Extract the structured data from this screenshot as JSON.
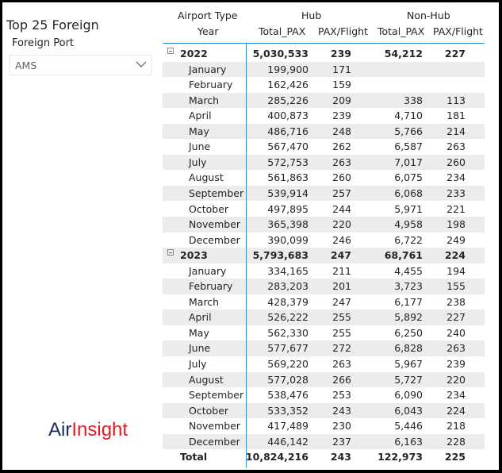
{
  "title": "Top 25 Foreign",
  "slicer": {
    "label": "Foreign Port",
    "value": "AMS"
  },
  "logo": {
    "part1": "Air",
    "part2": "Insight"
  },
  "headers": {
    "row_header": "Airport Type",
    "col_header": "Year",
    "group1": "Hub",
    "group2": "Non-Hub",
    "total_pax": "Total_PAX",
    "pax_flight": "PAX/Flight"
  },
  "rows": [
    {
      "type": "year",
      "label": "2022",
      "v": [
        "5,030,533",
        "239",
        "54,212",
        "227"
      ]
    },
    {
      "type": "month",
      "label": "January",
      "v": [
        "199,900",
        "171",
        "",
        ""
      ]
    },
    {
      "type": "month",
      "label": "February",
      "v": [
        "162,426",
        "159",
        "",
        ""
      ]
    },
    {
      "type": "month",
      "label": "March",
      "v": [
        "285,226",
        "209",
        "338",
        "113"
      ]
    },
    {
      "type": "month",
      "label": "April",
      "v": [
        "400,873",
        "239",
        "4,710",
        "181"
      ]
    },
    {
      "type": "month",
      "label": "May",
      "v": [
        "486,716",
        "248",
        "5,766",
        "214"
      ]
    },
    {
      "type": "month",
      "label": "June",
      "v": [
        "567,470",
        "262",
        "6,587",
        "263"
      ]
    },
    {
      "type": "month",
      "label": "July",
      "v": [
        "572,753",
        "263",
        "7,017",
        "260"
      ]
    },
    {
      "type": "month",
      "label": "August",
      "v": [
        "561,863",
        "260",
        "6,075",
        "234"
      ]
    },
    {
      "type": "month",
      "label": "September",
      "v": [
        "539,914",
        "257",
        "6,068",
        "233"
      ]
    },
    {
      "type": "month",
      "label": "October",
      "v": [
        "497,895",
        "244",
        "5,971",
        "221"
      ]
    },
    {
      "type": "month",
      "label": "November",
      "v": [
        "365,398",
        "220",
        "4,958",
        "198"
      ]
    },
    {
      "type": "month",
      "label": "December",
      "v": [
        "390,099",
        "246",
        "6,722",
        "249"
      ]
    },
    {
      "type": "year",
      "label": "2023",
      "v": [
        "5,793,683",
        "247",
        "68,761",
        "224"
      ]
    },
    {
      "type": "month",
      "label": "January",
      "v": [
        "334,165",
        "211",
        "4,455",
        "194"
      ]
    },
    {
      "type": "month",
      "label": "February",
      "v": [
        "283,203",
        "201",
        "3,723",
        "155"
      ]
    },
    {
      "type": "month",
      "label": "March",
      "v": [
        "428,379",
        "247",
        "6,177",
        "238"
      ]
    },
    {
      "type": "month",
      "label": "April",
      "v": [
        "526,222",
        "255",
        "5,892",
        "227"
      ]
    },
    {
      "type": "month",
      "label": "May",
      "v": [
        "562,330",
        "255",
        "6,250",
        "240"
      ]
    },
    {
      "type": "month",
      "label": "June",
      "v": [
        "577,677",
        "272",
        "6,828",
        "263"
      ]
    },
    {
      "type": "month",
      "label": "July",
      "v": [
        "569,220",
        "263",
        "5,967",
        "239"
      ]
    },
    {
      "type": "month",
      "label": "August",
      "v": [
        "577,028",
        "266",
        "5,727",
        "220"
      ]
    },
    {
      "type": "month",
      "label": "September",
      "v": [
        "538,476",
        "253",
        "6,090",
        "234"
      ]
    },
    {
      "type": "month",
      "label": "October",
      "v": [
        "533,352",
        "243",
        "6,043",
        "224"
      ]
    },
    {
      "type": "month",
      "label": "November",
      "v": [
        "417,489",
        "230",
        "5,446",
        "218"
      ]
    },
    {
      "type": "month",
      "label": "December",
      "v": [
        "446,142",
        "237",
        "6,163",
        "228"
      ]
    },
    {
      "type": "total",
      "label": "Total",
      "v": [
        "10,824,216",
        "243",
        "122,973",
        "225"
      ]
    }
  ]
}
